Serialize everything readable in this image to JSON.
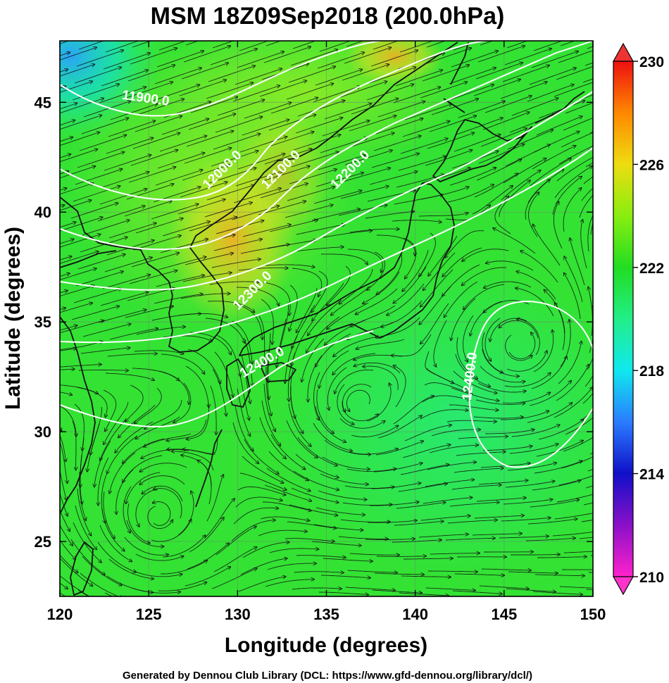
{
  "title": "MSM 18Z09Sep2018 (200.0hPa)",
  "xlabel": "Longitude (degrees)",
  "ylabel": "Latitude  (degrees)",
  "credit": "Generated by Dennou Club Library (DCL: https://www.gfd-dennou.org/library/dcl/)",
  "map": {
    "lon_range": [
      120,
      150
    ],
    "lat_range": [
      22.5,
      47.8
    ],
    "x_ticks": [
      {
        "value": 120,
        "label": "120"
      },
      {
        "value": 125,
        "label": "125"
      },
      {
        "value": 130,
        "label": "130"
      },
      {
        "value": 135,
        "label": "135"
      },
      {
        "value": 140,
        "label": "140"
      },
      {
        "value": 145,
        "label": "145"
      },
      {
        "value": 150,
        "label": "150"
      }
    ],
    "y_ticks": [
      {
        "value": 25,
        "label": "25"
      },
      {
        "value": 30,
        "label": "30"
      },
      {
        "value": 35,
        "label": "35"
      },
      {
        "value": 40,
        "label": "40"
      },
      {
        "value": 45,
        "label": "45"
      }
    ],
    "grid": true,
    "field": "temperature shading",
    "contours": "geopotential height",
    "streamlines": "wind"
  },
  "colorbar": {
    "min": 210,
    "max": 230,
    "ticks": [
      {
        "value": 230,
        "label": "230"
      },
      {
        "value": 226,
        "label": "226"
      },
      {
        "value": 222,
        "label": "222"
      },
      {
        "value": 218,
        "label": "218"
      },
      {
        "value": 214,
        "label": "214"
      },
      {
        "value": 210,
        "label": "210"
      }
    ],
    "stops": [
      {
        "value": 210,
        "color": "#ff22cc"
      },
      {
        "value": 212,
        "color": "#8a10c8"
      },
      {
        "value": 214,
        "color": "#1010c8"
      },
      {
        "value": 216,
        "color": "#2a7cff"
      },
      {
        "value": 218,
        "color": "#10e8ee"
      },
      {
        "value": 220,
        "color": "#22ee88"
      },
      {
        "value": 222,
        "color": "#22dd22"
      },
      {
        "value": 224,
        "color": "#88ee10"
      },
      {
        "value": 226,
        "color": "#eedd10"
      },
      {
        "value": 228,
        "color": "#ff8800"
      },
      {
        "value": 230,
        "color": "#ee1010"
      }
    ]
  },
  "contour_labels": [
    {
      "text": "11900.0",
      "lon": 124.8,
      "lat": 45.0,
      "angle": 8
    },
    {
      "text": "12000.0",
      "lon": 129.3,
      "lat": 41.8,
      "angle": -45
    },
    {
      "text": "12100.0",
      "lon": 132.6,
      "lat": 41.8,
      "angle": -45
    },
    {
      "text": "12200.0",
      "lon": 136.5,
      "lat": 41.8,
      "angle": -45
    },
    {
      "text": "12300.0",
      "lon": 131.0,
      "lat": 36.3,
      "angle": -45
    },
    {
      "text": "12400.0",
      "lon": 131.5,
      "lat": 33.0,
      "angle": -30
    },
    {
      "text": "12400.0",
      "lon": 143.3,
      "lat": 32.5,
      "angle": -83
    }
  ]
}
